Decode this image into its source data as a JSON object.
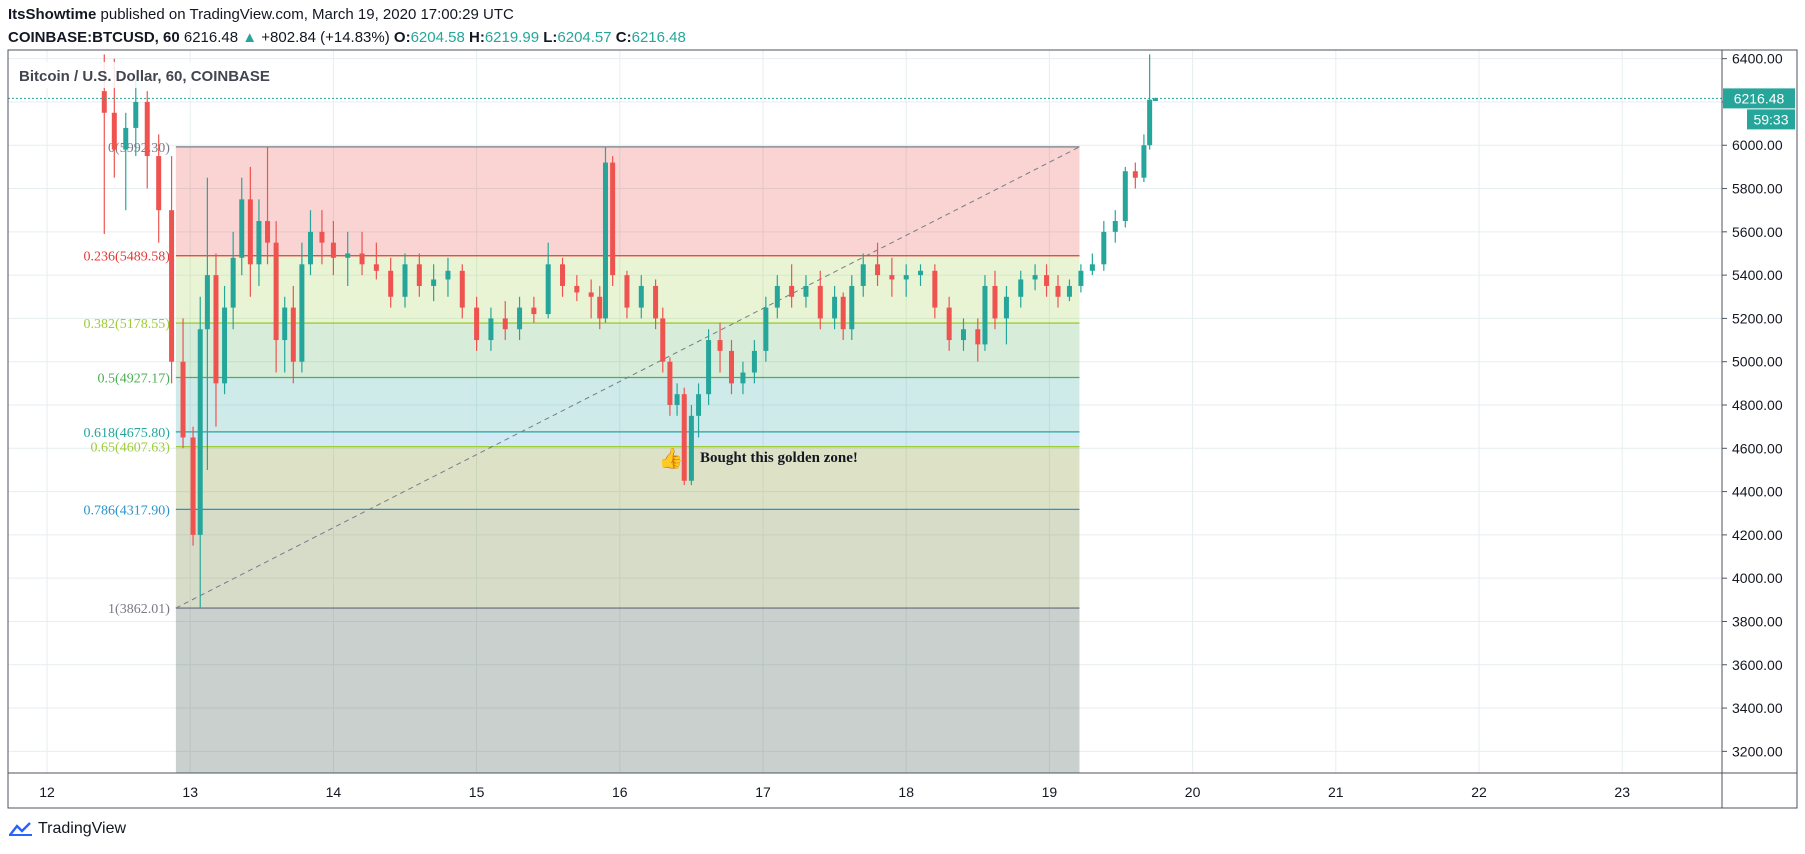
{
  "header": {
    "author": "ItsShowtime",
    "published": " published on TradingView.com, March 19, 2020 17:00:29 UTC",
    "symbol": "COINBASE:BTCUSD, 60",
    "last": "6216.48",
    "change": "+802.84 (+14.83%)",
    "o_label": "O:",
    "o_value": "6204.58",
    "h_label": "H:",
    "h_value": "6219.99",
    "l_label": "L:",
    "l_value": "6204.57",
    "c_label": "C:",
    "c_value": "6216.48"
  },
  "footer": {
    "brand": "TradingView"
  },
  "colors": {
    "up": "#26a69a",
    "down": "#ef5350",
    "grid": "#e6eef0",
    "price_line": "#26a69a"
  },
  "chart_data": {
    "type": "candlestick",
    "title": "Bitcoin / U.S. Dollar, 60, COINBASE",
    "x_ticks": [
      "12",
      "13",
      "14",
      "15",
      "16",
      "17",
      "18",
      "19",
      "20",
      "21",
      "22",
      "23"
    ],
    "y_ticks": [
      "3200.00",
      "3400.00",
      "3600.00",
      "3800.00",
      "4000.00",
      "4200.00",
      "4400.00",
      "4600.00",
      "4800.00",
      "5000.00",
      "5200.00",
      "5400.00",
      "5600.00",
      "5800.00",
      "6000.00",
      "6200.00",
      "6400.00"
    ],
    "ylim": [
      3100,
      6440
    ],
    "last_price_label": "6216.48",
    "countdown_label": "59:33",
    "last_price": 6216.48,
    "fib_levels": [
      {
        "ratio": 0,
        "price": 5992.3,
        "label": "0(5992.30)",
        "color": "#787b86"
      },
      {
        "ratio": 0.236,
        "price": 5489.58,
        "label": "0.236(5489.58)",
        "color": "#e53935"
      },
      {
        "ratio": 0.382,
        "price": 5178.55,
        "label": "0.382(5178.55)",
        "color": "#9ccc3a"
      },
      {
        "ratio": 0.5,
        "price": 4927.17,
        "label": "0.5(4927.17)",
        "color": "#4caf50"
      },
      {
        "ratio": 0.618,
        "price": 4675.8,
        "label": "0.618(4675.80)",
        "color": "#26a69a"
      },
      {
        "ratio": 0.65,
        "price": 4607.63,
        "label": "0.65(4607.63)",
        "color": "#9ccc3a"
      },
      {
        "ratio": 0.786,
        "price": 4317.9,
        "label": "0.786(4317.90)",
        "color": "#2a93c8"
      },
      {
        "ratio": 1,
        "price": 3862.01,
        "label": "1(3862.01)",
        "color": "#787b86"
      }
    ],
    "annotation": "Bought this golden zone!",
    "candles": [
      {
        "d": 12.4,
        "o": 6250,
        "h": 6420,
        "l": 5590,
        "c": 6150
      },
      {
        "d": 12.47,
        "o": 6150,
        "h": 6400,
        "l": 5850,
        "c": 5980
      },
      {
        "d": 12.55,
        "o": 5980,
        "h": 6150,
        "l": 5700,
        "c": 6080
      },
      {
        "d": 12.62,
        "o": 6080,
        "h": 6300,
        "l": 5950,
        "c": 6200
      },
      {
        "d": 12.7,
        "o": 6200,
        "h": 6250,
        "l": 5800,
        "c": 5950
      },
      {
        "d": 12.78,
        "o": 5950,
        "h": 6050,
        "l": 5550,
        "c": 5700
      },
      {
        "d": 12.87,
        "o": 5700,
        "h": 5950,
        "l": 4900,
        "c": 5000
      },
      {
        "d": 12.95,
        "o": 5000,
        "h": 5200,
        "l": 4600,
        "c": 4650
      },
      {
        "d": 13.02,
        "o": 4650,
        "h": 4700,
        "l": 4150,
        "c": 4200
      },
      {
        "d": 13.07,
        "o": 4200,
        "h": 5300,
        "l": 3862,
        "c": 5150
      },
      {
        "d": 13.12,
        "o": 5150,
        "h": 5850,
        "l": 4500,
        "c": 5400
      },
      {
        "d": 13.18,
        "o": 5400,
        "h": 5500,
        "l": 4700,
        "c": 4900
      },
      {
        "d": 13.24,
        "o": 4900,
        "h": 5350,
        "l": 4850,
        "c": 5250
      },
      {
        "d": 13.3,
        "o": 5250,
        "h": 5600,
        "l": 5150,
        "c": 5480
      },
      {
        "d": 13.36,
        "o": 5480,
        "h": 5850,
        "l": 5400,
        "c": 5750
      },
      {
        "d": 13.42,
        "o": 5750,
        "h": 5900,
        "l": 5300,
        "c": 5450
      },
      {
        "d": 13.48,
        "o": 5450,
        "h": 5750,
        "l": 5350,
        "c": 5650
      },
      {
        "d": 13.54,
        "o": 5650,
        "h": 5992,
        "l": 5450,
        "c": 5550
      },
      {
        "d": 13.6,
        "o": 5550,
        "h": 5650,
        "l": 4950,
        "c": 5100
      },
      {
        "d": 13.66,
        "o": 5100,
        "h": 5300,
        "l": 4950,
        "c": 5250
      },
      {
        "d": 13.72,
        "o": 5250,
        "h": 5350,
        "l": 4900,
        "c": 5000
      },
      {
        "d": 13.78,
        "o": 5000,
        "h": 5550,
        "l": 4950,
        "c": 5450
      },
      {
        "d": 13.84,
        "o": 5450,
        "h": 5700,
        "l": 5400,
        "c": 5600
      },
      {
        "d": 13.92,
        "o": 5600,
        "h": 5700,
        "l": 5450,
        "c": 5550
      },
      {
        "d": 14.0,
        "o": 5550,
        "h": 5650,
        "l": 5400,
        "c": 5480
      },
      {
        "d": 14.1,
        "o": 5480,
        "h": 5600,
        "l": 5350,
        "c": 5500
      },
      {
        "d": 14.2,
        "o": 5500,
        "h": 5600,
        "l": 5400,
        "c": 5450
      },
      {
        "d": 14.3,
        "o": 5450,
        "h": 5550,
        "l": 5380,
        "c": 5420
      },
      {
        "d": 14.4,
        "o": 5420,
        "h": 5480,
        "l": 5250,
        "c": 5300
      },
      {
        "d": 14.5,
        "o": 5300,
        "h": 5500,
        "l": 5250,
        "c": 5450
      },
      {
        "d": 14.6,
        "o": 5450,
        "h": 5500,
        "l": 5300,
        "c": 5350
      },
      {
        "d": 14.7,
        "o": 5350,
        "h": 5450,
        "l": 5280,
        "c": 5380
      },
      {
        "d": 14.8,
        "o": 5380,
        "h": 5480,
        "l": 5300,
        "c": 5420
      },
      {
        "d": 14.9,
        "o": 5420,
        "h": 5450,
        "l": 5200,
        "c": 5250
      },
      {
        "d": 15.0,
        "o": 5250,
        "h": 5300,
        "l": 5050,
        "c": 5100
      },
      {
        "d": 15.1,
        "o": 5100,
        "h": 5250,
        "l": 5050,
        "c": 5200
      },
      {
        "d": 15.2,
        "o": 5200,
        "h": 5280,
        "l": 5100,
        "c": 5150
      },
      {
        "d": 15.3,
        "o": 5150,
        "h": 5300,
        "l": 5100,
        "c": 5250
      },
      {
        "d": 15.4,
        "o": 5250,
        "h": 5300,
        "l": 5180,
        "c": 5220
      },
      {
        "d": 15.5,
        "o": 5220,
        "h": 5550,
        "l": 5200,
        "c": 5450
      },
      {
        "d": 15.6,
        "o": 5450,
        "h": 5480,
        "l": 5300,
        "c": 5350
      },
      {
        "d": 15.7,
        "o": 5350,
        "h": 5400,
        "l": 5280,
        "c": 5320
      },
      {
        "d": 15.8,
        "o": 5320,
        "h": 5380,
        "l": 5200,
        "c": 5300
      },
      {
        "d": 15.86,
        "o": 5300,
        "h": 5350,
        "l": 5150,
        "c": 5200
      },
      {
        "d": 15.9,
        "o": 5200,
        "h": 5992,
        "l": 5180,
        "c": 5920
      },
      {
        "d": 15.95,
        "o": 5920,
        "h": 5950,
        "l": 5350,
        "c": 5400
      },
      {
        "d": 16.05,
        "o": 5400,
        "h": 5420,
        "l": 5200,
        "c": 5250
      },
      {
        "d": 16.15,
        "o": 5250,
        "h": 5400,
        "l": 5200,
        "c": 5350
      },
      {
        "d": 16.25,
        "o": 5350,
        "h": 5380,
        "l": 5150,
        "c": 5200
      },
      {
        "d": 16.3,
        "o": 5200,
        "h": 5250,
        "l": 4950,
        "c": 5000
      },
      {
        "d": 16.35,
        "o": 5000,
        "h": 5020,
        "l": 4750,
        "c": 4800
      },
      {
        "d": 16.4,
        "o": 4800,
        "h": 4900,
        "l": 4750,
        "c": 4850
      },
      {
        "d": 16.45,
        "o": 4850,
        "h": 4880,
        "l": 4430,
        "c": 4450
      },
      {
        "d": 16.5,
        "o": 4450,
        "h": 4800,
        "l": 4430,
        "c": 4750
      },
      {
        "d": 16.55,
        "o": 4750,
        "h": 4900,
        "l": 4650,
        "c": 4850
      },
      {
        "d": 16.62,
        "o": 4850,
        "h": 5150,
        "l": 4800,
        "c": 5100
      },
      {
        "d": 16.7,
        "o": 5100,
        "h": 5180,
        "l": 4950,
        "c": 5050
      },
      {
        "d": 16.78,
        "o": 5050,
        "h": 5100,
        "l": 4850,
        "c": 4900
      },
      {
        "d": 16.86,
        "o": 4900,
        "h": 5000,
        "l": 4850,
        "c": 4950
      },
      {
        "d": 16.94,
        "o": 4950,
        "h": 5100,
        "l": 4900,
        "c": 5050
      },
      {
        "d": 17.02,
        "o": 5050,
        "h": 5300,
        "l": 5000,
        "c": 5250
      },
      {
        "d": 17.1,
        "o": 5250,
        "h": 5400,
        "l": 5200,
        "c": 5350
      },
      {
        "d": 17.2,
        "o": 5350,
        "h": 5450,
        "l": 5250,
        "c": 5300
      },
      {
        "d": 17.3,
        "o": 5300,
        "h": 5400,
        "l": 5250,
        "c": 5350
      },
      {
        "d": 17.4,
        "o": 5350,
        "h": 5420,
        "l": 5150,
        "c": 5200
      },
      {
        "d": 17.5,
        "o": 5200,
        "h": 5350,
        "l": 5150,
        "c": 5300
      },
      {
        "d": 17.56,
        "o": 5300,
        "h": 5320,
        "l": 5100,
        "c": 5150
      },
      {
        "d": 17.62,
        "o": 5150,
        "h": 5400,
        "l": 5100,
        "c": 5350
      },
      {
        "d": 17.7,
        "o": 5350,
        "h": 5500,
        "l": 5300,
        "c": 5450
      },
      {
        "d": 17.8,
        "o": 5450,
        "h": 5550,
        "l": 5350,
        "c": 5400
      },
      {
        "d": 17.9,
        "o": 5400,
        "h": 5480,
        "l": 5300,
        "c": 5380
      },
      {
        "d": 18.0,
        "o": 5380,
        "h": 5450,
        "l": 5300,
        "c": 5400
      },
      {
        "d": 18.1,
        "o": 5400,
        "h": 5450,
        "l": 5350,
        "c": 5420
      },
      {
        "d": 18.2,
        "o": 5420,
        "h": 5450,
        "l": 5200,
        "c": 5250
      },
      {
        "d": 18.3,
        "o": 5250,
        "h": 5300,
        "l": 5050,
        "c": 5100
      },
      {
        "d": 18.4,
        "o": 5100,
        "h": 5200,
        "l": 5050,
        "c": 5150
      },
      {
        "d": 18.5,
        "o": 5150,
        "h": 5200,
        "l": 5000,
        "c": 5080
      },
      {
        "d": 18.55,
        "o": 5080,
        "h": 5400,
        "l": 5050,
        "c": 5350
      },
      {
        "d": 18.62,
        "o": 5350,
        "h": 5420,
        "l": 5150,
        "c": 5200
      },
      {
        "d": 18.7,
        "o": 5200,
        "h": 5350,
        "l": 5080,
        "c": 5300
      },
      {
        "d": 18.8,
        "o": 5300,
        "h": 5420,
        "l": 5250,
        "c": 5380
      },
      {
        "d": 18.9,
        "o": 5380,
        "h": 5450,
        "l": 5330,
        "c": 5400
      },
      {
        "d": 18.98,
        "o": 5400,
        "h": 5450,
        "l": 5300,
        "c": 5350
      },
      {
        "d": 19.06,
        "o": 5350,
        "h": 5400,
        "l": 5250,
        "c": 5300
      },
      {
        "d": 19.14,
        "o": 5300,
        "h": 5380,
        "l": 5280,
        "c": 5350
      },
      {
        "d": 19.22,
        "o": 5350,
        "h": 5450,
        "l": 5320,
        "c": 5420
      },
      {
        "d": 19.3,
        "o": 5420,
        "h": 5500,
        "l": 5400,
        "c": 5450
      },
      {
        "d": 19.38,
        "o": 5450,
        "h": 5650,
        "l": 5420,
        "c": 5600
      },
      {
        "d": 19.46,
        "o": 5600,
        "h": 5700,
        "l": 5550,
        "c": 5650
      },
      {
        "d": 19.53,
        "o": 5650,
        "h": 5900,
        "l": 5620,
        "c": 5880
      },
      {
        "d": 19.6,
        "o": 5880,
        "h": 5920,
        "l": 5800,
        "c": 5850
      },
      {
        "d": 19.66,
        "o": 5850,
        "h": 6050,
        "l": 5830,
        "c": 6000
      },
      {
        "d": 19.7,
        "o": 6000,
        "h": 6420,
        "l": 5980,
        "c": 6210
      },
      {
        "d": 19.74,
        "o": 6204.58,
        "h": 6219.99,
        "l": 6204.57,
        "c": 6216.48
      }
    ]
  }
}
